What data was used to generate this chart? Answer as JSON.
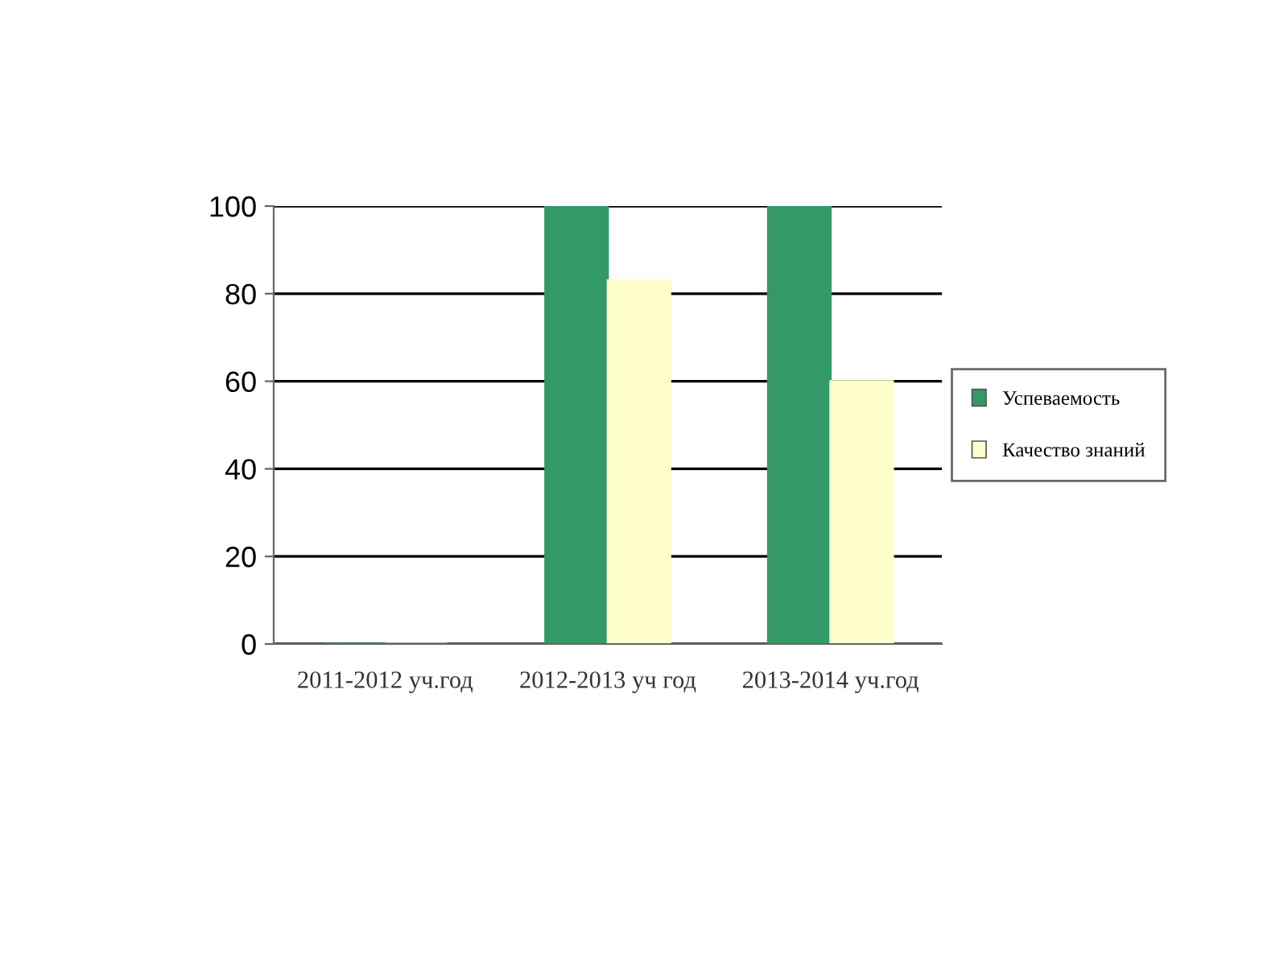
{
  "chart_data": {
    "type": "bar",
    "categories": [
      "2011-2012 уч.год",
      "2012-2013 уч год",
      "2013-2014 уч.год"
    ],
    "series": [
      {
        "name": "Успеваемость",
        "color": "#339966",
        "values": [
          0,
          100,
          100
        ]
      },
      {
        "name": "Качество знаний",
        "color": "#ffffcc",
        "values": [
          0,
          83,
          60
        ]
      }
    ],
    "ylim": [
      0,
      100
    ],
    "yticks": [
      0,
      20,
      40,
      60,
      80,
      100
    ],
    "grid": "y",
    "legend": "right"
  }
}
